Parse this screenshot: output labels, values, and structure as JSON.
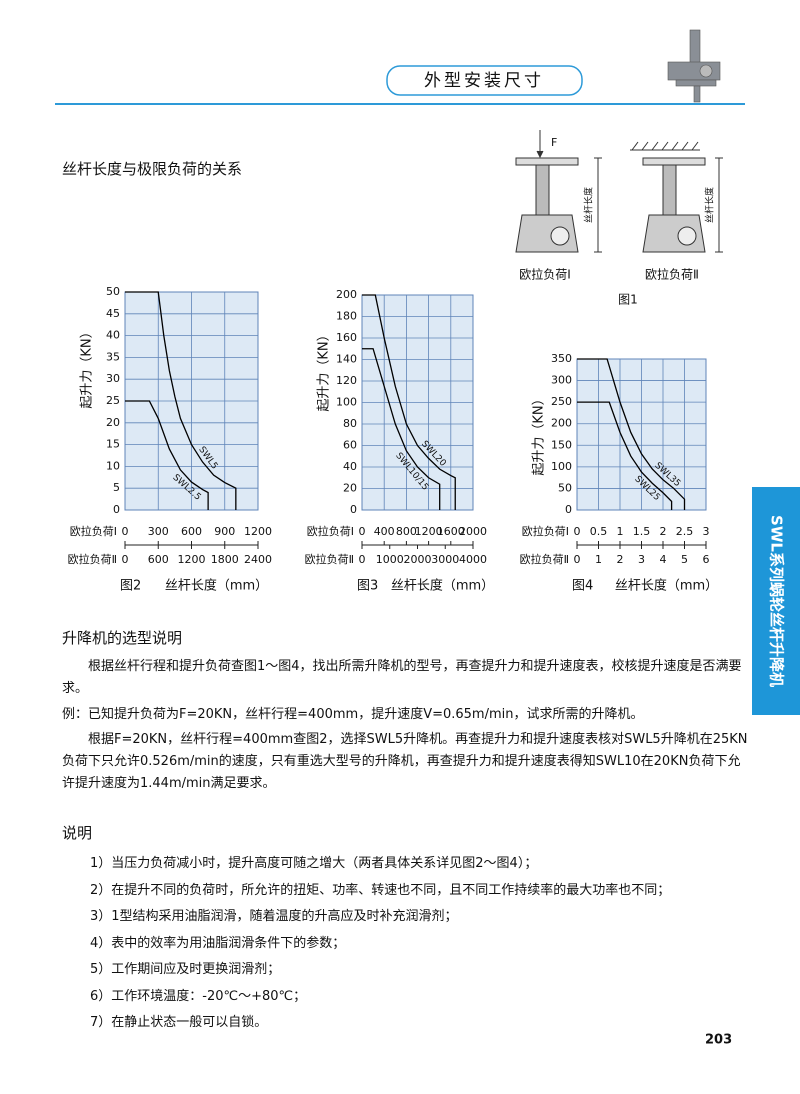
{
  "header": {
    "title": "外型安装尺寸"
  },
  "side_tab": "SWL系列蜗轮丝杆升降机",
  "section_title": "丝杆长度与极限负荷的关系",
  "figure1": {
    "force_label": "F",
    "length_label": "丝杆长度",
    "labels": [
      "欧拉负荷Ⅰ",
      "欧拉负荷Ⅱ"
    ],
    "caption": "图1"
  },
  "chart_data": [
    {
      "type": "line",
      "caption": "图2",
      "xlabel": "丝杆长度（mm）",
      "ylabel": "起升力（KN）",
      "x_axis_name": "欧拉负荷Ⅰ",
      "x2_axis_name": "欧拉负荷Ⅱ",
      "xlim": [
        0,
        1200
      ],
      "xticks": [
        0,
        300,
        600,
        900,
        1200
      ],
      "x2lim": [
        0,
        2400
      ],
      "x2ticks": [
        0,
        600,
        1200,
        1800,
        2400
      ],
      "ylim": [
        0,
        50
      ],
      "yticks": [
        0,
        5,
        10,
        15,
        20,
        25,
        30,
        35,
        40,
        45,
        50
      ],
      "grid": true,
      "plot_background": "#dde9f5",
      "grid_color": "#5f84b8",
      "series": [
        {
          "name": "SWL5",
          "color": "#000000",
          "x": [
            0,
            300,
            350,
            400,
            450,
            500,
            600,
            700,
            800,
            900,
            1000,
            1000
          ],
          "values": [
            50,
            50,
            40,
            32,
            26,
            21,
            15,
            11,
            8,
            6.3,
            5,
            0
          ]
        },
        {
          "name": "SWL2.5",
          "color": "#000000",
          "x": [
            0,
            220,
            300,
            400,
            500,
            600,
            700,
            750,
            750
          ],
          "values": [
            25,
            25,
            21,
            14,
            9.2,
            6.4,
            4.7,
            4,
            0
          ]
        }
      ]
    },
    {
      "type": "line",
      "caption": "图3",
      "xlabel": "丝杆长度（mm）",
      "ylabel": "起升力（KN）",
      "x_axis_name": "欧拉负荷Ⅰ",
      "x2_axis_name": "欧拉负荷Ⅱ",
      "xlim": [
        0,
        2000
      ],
      "xticks": [
        0,
        400,
        800,
        1200,
        1600,
        2000
      ],
      "x2lim": [
        0,
        4000
      ],
      "x2ticks": [
        0,
        1000,
        2000,
        3000,
        4000
      ],
      "ylim": [
        0,
        200
      ],
      "yticks": [
        0,
        20,
        40,
        60,
        80,
        100,
        120,
        140,
        160,
        180,
        200
      ],
      "grid": true,
      "plot_background": "#dde9f5",
      "grid_color": "#5f84b8",
      "series": [
        {
          "name": "SWL20",
          "color": "#000000",
          "x": [
            0,
            240,
            400,
            600,
            800,
            1000,
            1200,
            1400,
            1600,
            1680,
            1680
          ],
          "values": [
            200,
            200,
            160,
            115,
            80,
            60,
            48,
            38,
            32,
            30,
            0
          ]
        },
        {
          "name": "SWL10/15",
          "color": "#000000",
          "x": [
            0,
            200,
            400,
            600,
            800,
            1000,
            1200,
            1400,
            1400
          ],
          "values": [
            150,
            150,
            115,
            80,
            55,
            40,
            30,
            24,
            0
          ]
        }
      ]
    },
    {
      "type": "line",
      "caption": "图4",
      "xlabel": "丝杆长度（mm）",
      "ylabel": "起升力（KN）",
      "x_axis_name": "欧拉负荷Ⅰ",
      "x2_axis_name": "欧拉负荷Ⅱ",
      "xlim": [
        0,
        3
      ],
      "xticks": [
        0,
        0.5,
        1,
        1.5,
        2,
        2.5,
        3
      ],
      "x2lim": [
        0,
        6
      ],
      "x2ticks": [
        0,
        1,
        2,
        3,
        4,
        5,
        6
      ],
      "ylim": [
        0,
        350
      ],
      "yticks": [
        0,
        50,
        100,
        150,
        200,
        250,
        300,
        350
      ],
      "grid": true,
      "plot_background": "#dde9f5",
      "grid_color": "#5f84b8",
      "series": [
        {
          "name": "SWL35",
          "color": "#000000",
          "x": [
            0,
            0.7,
            1,
            1.25,
            1.5,
            1.75,
            2,
            2.25,
            2.5,
            2.5
          ],
          "values": [
            350,
            350,
            250,
            180,
            130,
            95,
            70,
            50,
            25,
            0
          ]
        },
        {
          "name": "SWL25",
          "color": "#000000",
          "x": [
            0,
            0.75,
            1,
            1.25,
            1.5,
            1.75,
            2,
            2.2,
            2.2
          ],
          "values": [
            250,
            250,
            180,
            125,
            88,
            62,
            40,
            20,
            0
          ]
        }
      ]
    }
  ],
  "selection": {
    "title": "升降机的选型说明",
    "paragraphs": [
      "根据丝杆行程和提升负荷查图1～图4，找出所需升降机的型号，再查提升力和提升速度表，校核提升速度是否满要求。",
      "例：已知提升负荷为F=20KN，丝杆行程=400mm，提升速度V=0.65m/min，试求所需的升降机。",
      "根据F=20KN，丝杆行程=400mm查图2，选择SWL5升降机。再查提升力和提升速度表核对SWL5升降机在25KN负荷下只允许0.526m/min的速度，只有重选大型号的升降机，再查提升力和提升速度表得知SWL10在20KN负荷下允许提升速度为1.44m/min满足要求。"
    ]
  },
  "notes": {
    "title": "说明",
    "items": [
      "1）当压力负荷减小时，提升高度可随之增大（两者具体关系详见图2～图4）；",
      "2）在提升不同的负荷时，所允许的扭矩、功率、转速也不同，且不同工作持续率的最大功率也不同；",
      "3）1型结构采用油脂润滑，随着温度的升高应及时补充润滑剂；",
      "4）表中的效率为用油脂润滑条件下的参数；",
      "5）工作期间应及时更换润滑剂；",
      "6）工作环境温度：-20℃～+80℃；",
      "7）在静止状态一般可以自锁。"
    ]
  },
  "page_number": "203"
}
